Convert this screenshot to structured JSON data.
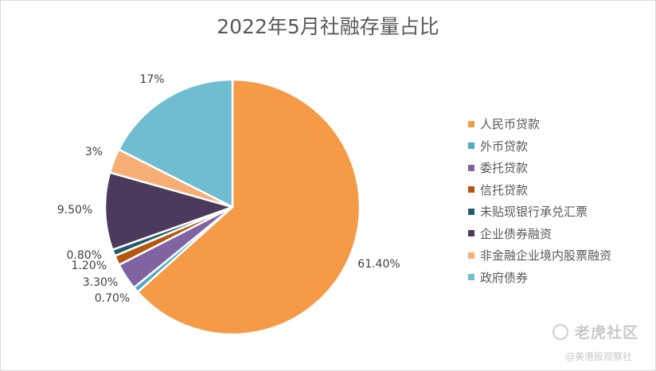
{
  "chart_data": {
    "type": "pie",
    "title": "2022年5月社融存量占比",
    "slices": [
      {
        "label": "人民币贷款",
        "value": 61.4,
        "display": "61.40%",
        "color": "#F59A46"
      },
      {
        "label": "外币贷款",
        "value": 0.7,
        "display": "0.70%",
        "color": "#4BACC6"
      },
      {
        "label": "委托贷款",
        "value": 3.3,
        "display": "3.30%",
        "color": "#8064A2"
      },
      {
        "label": "信托贷款",
        "value": 1.2,
        "display": "1.20%",
        "color": "#B5560F"
      },
      {
        "label": "未贴现银行承兑汇票",
        "value": 0.8,
        "display": "0.80%",
        "color": "#1F5C6B"
      },
      {
        "label": "企业债券融资",
        "value": 9.5,
        "display": "9.50%",
        "color": "#4B3A5E"
      },
      {
        "label": "非金融企业境内股票融资",
        "value": 3.0,
        "display": "3%",
        "color": "#F7AE74"
      },
      {
        "label": "政府债券",
        "value": 17.0,
        "display": "17%",
        "color": "#6EBDD0"
      }
    ],
    "legend": "right"
  },
  "watermark": {
    "brand": "老虎社区",
    "handle": "@美港股观察社"
  }
}
